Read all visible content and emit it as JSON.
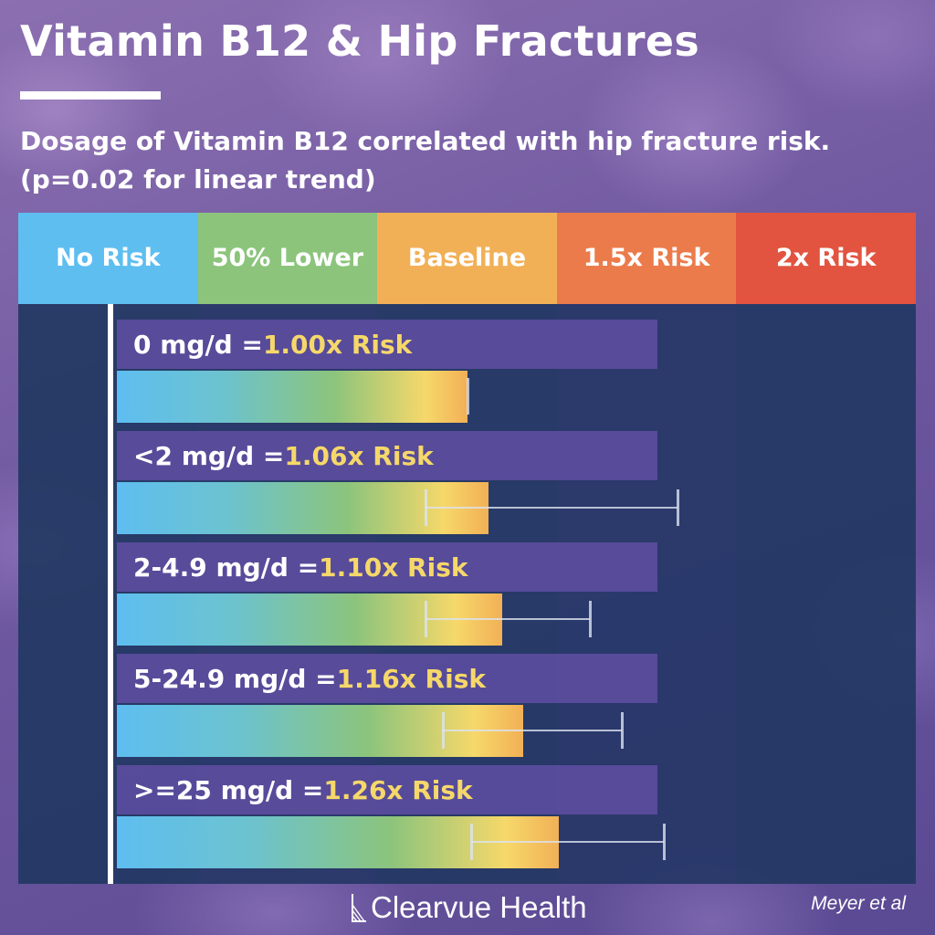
{
  "header": {
    "title": "Vitamin B12 & Hip Fractures",
    "subtitle_line1": "Dosage of Vitamin B12 correlated with hip fracture risk.",
    "subtitle_line2": "(p=0.02 for linear trend)"
  },
  "scale": [
    {
      "label": "No Risk",
      "color": "#5ebef0",
      "band_color": "#27416e"
    },
    {
      "label": "50% Lower",
      "color": "#8cc47c",
      "band_color": "#2c3f74"
    },
    {
      "label": "Baseline",
      "color": "#f2b056",
      "band_color": "#27416e"
    },
    {
      "label": "1.5x Risk",
      "color": "#ec7b4b",
      "band_color": "#2c3f74"
    },
    {
      "label": "2x Risk",
      "color": "#e2543f",
      "band_color": "#27416e"
    }
  ],
  "chart_data": {
    "type": "bar",
    "orientation": "horizontal",
    "categories": [
      "0 mg/d",
      "<2 mg/d",
      "2-4.9 mg/d",
      "5-24.9 mg/d",
      ">=25 mg/d"
    ],
    "values": [
      1.0,
      1.06,
      1.1,
      1.16,
      1.26
    ],
    "value_labels": [
      "1.00x Risk",
      "1.06x Risk",
      "1.10x Risk",
      "1.16x Risk",
      "1.26x Risk"
    ],
    "label_separator": " = ",
    "error_bars": [
      {
        "low": 1.0,
        "high": 1.0
      },
      {
        "low": 0.88,
        "high": 1.6
      },
      {
        "low": 0.88,
        "high": 1.35
      },
      {
        "low": 0.93,
        "high": 1.44
      },
      {
        "low": 1.01,
        "high": 1.56
      }
    ],
    "xlim": [
      0,
      2.5
    ],
    "scale_ticks": [
      "No Risk",
      "50% Lower",
      "Baseline",
      "1.5x Risk",
      "2x Risk"
    ],
    "grid": false,
    "legend": "none"
  },
  "footer": {
    "brand": "Clearvue Health",
    "credit": "Meyer et al"
  }
}
